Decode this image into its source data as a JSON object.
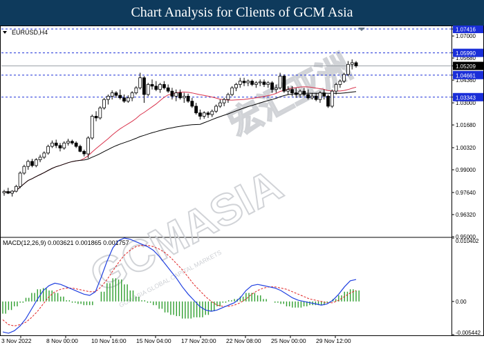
{
  "header": {
    "title": "Chart Analysis for Clients of GCM Asia"
  },
  "watermark": {
    "text": "GCMASIA",
    "chinese": "宏汇亚洲",
    "small": "GCM ASIA GLOBAL CAPITAL MARKETS"
  },
  "chart_data": {
    "type": "candlestick",
    "symbol_label": "EURUSD,H4",
    "price_axis": {
      "ticks": [
        "1.07416",
        "1.07000",
        "1.05990",
        "1.05680",
        "1.05209",
        "1.04661",
        "1.04360",
        "1.03343",
        "1.03000",
        "1.01680",
        "1.00320",
        "0.99000",
        "0.97640",
        "0.96320",
        "0.95000"
      ],
      "ylim": [
        0.95,
        1.075
      ]
    },
    "levels": [
      {
        "value": 1.07416,
        "label": "1.07416",
        "style": "dashed"
      },
      {
        "value": 1.0599,
        "label": "1.05990",
        "style": "dashed"
      },
      {
        "value": 1.05209,
        "label": "1.05209",
        "style": "solid-current"
      },
      {
        "value": 1.04661,
        "label": "1.04661",
        "style": "dashed"
      },
      {
        "value": 1.03343,
        "label": "1.03343",
        "style": "dashed"
      }
    ],
    "time_axis": {
      "labels": [
        "3 Nov 2022",
        "8 Nov 00:00",
        "10 Nov 16:00",
        "15 Nov 04:00",
        "17 Nov 20:00",
        "22 Nov 08:00",
        "25 Nov 00:00",
        "29 Nov 12:00"
      ]
    },
    "ohlc": [
      [
        0.9762,
        0.978,
        0.9745,
        0.977
      ],
      [
        0.977,
        0.9792,
        0.9755,
        0.976
      ],
      [
        0.976,
        0.9778,
        0.974,
        0.9772
      ],
      [
        0.9772,
        0.981,
        0.9765,
        0.98
      ],
      [
        0.98,
        0.989,
        0.979,
        0.988
      ],
      [
        0.988,
        0.993,
        0.987,
        0.992
      ],
      [
        0.992,
        0.996,
        0.99,
        0.995
      ],
      [
        0.995,
        0.9965,
        0.9915,
        0.9925
      ],
      [
        0.9925,
        0.997,
        0.9915,
        0.996
      ],
      [
        0.996,
        0.999,
        0.9945,
        0.9975
      ],
      [
        0.9975,
        1.001,
        0.9965,
        1.0
      ],
      [
        1.0,
        1.005,
        0.999,
        1.004
      ],
      [
        1.004,
        1.0075,
        1.003,
        1.006
      ],
      [
        1.006,
        1.008,
        1.003,
        1.0045
      ],
      [
        1.0045,
        1.006,
        1.001,
        1.003
      ],
      [
        1.003,
        1.007,
        1.002,
        1.006
      ],
      [
        1.006,
        1.0085,
        1.0045,
        1.007
      ],
      [
        1.007,
        1.008,
        1.005,
        1.006
      ],
      [
        1.006,
        1.007,
        1.003,
        1.004
      ],
      [
        1.004,
        1.005,
        1.0005,
        1.001
      ],
      [
        1.001,
        1.002,
        0.998,
        0.9995
      ],
      [
        0.9995,
        1.01,
        0.997,
        1.009
      ],
      [
        1.009,
        1.023,
        1.008,
        1.022
      ],
      [
        1.022,
        1.025,
        1.019,
        1.021
      ],
      [
        1.021,
        1.028,
        1.02,
        1.027
      ],
      [
        1.027,
        1.033,
        1.026,
        1.032
      ],
      [
        1.032,
        1.035,
        1.029,
        1.034
      ],
      [
        1.034,
        1.0375,
        1.032,
        1.036
      ],
      [
        1.036,
        1.037,
        1.033,
        1.0345
      ],
      [
        1.0345,
        1.038,
        1.032,
        1.033
      ],
      [
        1.033,
        1.035,
        1.03,
        1.031
      ],
      [
        1.031,
        1.0345,
        1.03,
        1.033
      ],
      [
        1.033,
        1.037,
        1.031,
        1.036
      ],
      [
        1.036,
        1.04,
        1.035,
        1.039
      ],
      [
        1.039,
        1.048,
        1.038,
        1.045
      ],
      [
        1.045,
        1.046,
        1.03,
        1.035
      ],
      [
        1.035,
        1.042,
        1.034,
        1.041
      ],
      [
        1.041,
        1.044,
        1.038,
        1.04
      ],
      [
        1.04,
        1.043,
        1.037,
        1.038
      ],
      [
        1.038,
        1.042,
        1.036,
        1.041
      ],
      [
        1.041,
        1.043,
        1.038,
        1.039
      ],
      [
        1.039,
        1.041,
        1.036,
        1.037
      ],
      [
        1.037,
        1.039,
        1.032,
        1.034
      ],
      [
        1.034,
        1.038,
        1.031,
        1.036
      ],
      [
        1.036,
        1.038,
        1.032,
        1.033
      ],
      [
        1.033,
        1.036,
        1.03,
        1.034
      ],
      [
        1.034,
        1.0355,
        1.03,
        1.031
      ],
      [
        1.031,
        1.033,
        1.027,
        1.028
      ],
      [
        1.028,
        1.03,
        1.023,
        1.024
      ],
      [
        1.024,
        1.026,
        1.02,
        1.022
      ],
      [
        1.022,
        1.025,
        1.0205,
        1.024
      ],
      [
        1.024,
        1.025,
        1.021,
        1.023
      ],
      [
        1.023,
        1.026,
        1.0215,
        1.025
      ],
      [
        1.025,
        1.029,
        1.024,
        1.028
      ],
      [
        1.028,
        1.032,
        1.027,
        1.03
      ],
      [
        1.03,
        1.033,
        1.028,
        1.032
      ],
      [
        1.032,
        1.036,
        1.03,
        1.035
      ],
      [
        1.035,
        1.04,
        1.034,
        1.039
      ],
      [
        1.039,
        1.042,
        1.037,
        1.041
      ],
      [
        1.041,
        1.045,
        1.039,
        1.043
      ],
      [
        1.043,
        1.045,
        1.04,
        1.042
      ],
      [
        1.042,
        1.044,
        1.04,
        1.043
      ],
      [
        1.043,
        1.044,
        1.04,
        1.041
      ],
      [
        1.041,
        1.043,
        1.039,
        1.042
      ],
      [
        1.042,
        1.044,
        1.04,
        1.0425
      ],
      [
        1.0425,
        1.044,
        1.0395,
        1.041
      ],
      [
        1.041,
        1.043,
        1.039,
        1.042
      ],
      [
        1.042,
        1.043,
        1.036,
        1.038
      ],
      [
        1.038,
        1.041,
        1.036,
        1.039
      ],
      [
        1.039,
        1.048,
        1.038,
        1.046
      ],
      [
        1.046,
        1.047,
        1.036,
        1.037
      ],
      [
        1.037,
        1.04,
        1.035,
        1.038
      ],
      [
        1.038,
        1.04,
        1.034,
        1.036
      ],
      [
        1.036,
        1.039,
        1.033,
        1.035
      ],
      [
        1.035,
        1.038,
        1.033,
        1.037
      ],
      [
        1.037,
        1.039,
        1.034,
        1.035
      ],
      [
        1.035,
        1.038,
        1.032,
        1.033
      ],
      [
        1.033,
        1.036,
        1.032,
        1.034
      ],
      [
        1.034,
        1.036,
        1.031,
        1.032
      ],
      [
        1.032,
        1.037,
        1.03,
        1.036
      ],
      [
        1.036,
        1.038,
        1.032,
        1.034
      ],
      [
        1.034,
        1.035,
        1.027,
        1.028
      ],
      [
        1.028,
        1.038,
        1.027,
        1.037
      ],
      [
        1.037,
        1.042,
        1.035,
        1.041
      ],
      [
        1.041,
        1.044,
        1.039,
        1.043
      ],
      [
        1.043,
        1.048,
        1.042,
        1.047
      ],
      [
        1.047,
        1.055,
        1.046,
        1.053
      ],
      [
        1.053,
        1.056,
        1.05,
        1.054
      ],
      [
        1.054,
        1.055,
        1.051,
        1.0521
      ]
    ],
    "moving_averages": [
      {
        "color": "#d9304a",
        "period": 20
      },
      {
        "color": "#000000",
        "period": 50
      }
    ],
    "macd": {
      "label": "MACD(12,26,9) 0.003621 0.001865 0.001757",
      "axis_ticks": [
        "0.010402",
        "0.00",
        "-0.005442"
      ],
      "ylim": [
        -0.005442,
        0.010402
      ],
      "main_line_color": "#1f3fe0",
      "signal_line_color": "#e02020",
      "histogram_color": "#2e9e2e",
      "main": [
        -0.005,
        -0.0052,
        -0.0048,
        -0.004,
        -0.0028,
        -0.0012,
        0.0004,
        0.0018,
        0.0026,
        0.003,
        0.0028,
        0.0024,
        0.002,
        0.0016,
        0.0012,
        0.001,
        0.0016,
        0.004,
        0.0066,
        0.0088,
        0.01,
        0.0104,
        0.0102,
        0.0098,
        0.0094,
        0.009,
        0.0084,
        0.0074,
        0.0062,
        0.005,
        0.0038,
        0.0024,
        0.0012,
        0.0002,
        -0.0008,
        -0.0014,
        -0.0016,
        -0.0014,
        -0.001,
        -0.0006,
        -0.0002,
        0.0006,
        0.0018,
        0.0026,
        0.0028,
        0.0026,
        0.0024,
        0.0022,
        0.0018,
        0.0012,
        0.0006,
        0.0002,
        0.0,
        -0.0002,
        -0.0004,
        -0.0006,
        -0.0004,
        0.0002,
        0.0012,
        0.0024,
        0.0034,
        0.0036
      ],
      "signal": [
        -0.003,
        -0.0038,
        -0.004,
        -0.0038,
        -0.0034,
        -0.0026,
        -0.0016,
        -0.0004,
        0.0008,
        0.0016,
        0.002,
        0.0022,
        0.0022,
        0.002,
        0.0018,
        0.0016,
        0.0016,
        0.0024,
        0.0036,
        0.005,
        0.0064,
        0.0076,
        0.0084,
        0.009,
        0.0092,
        0.0092,
        0.009,
        0.0086,
        0.008,
        0.0072,
        0.0062,
        0.0052,
        0.004,
        0.0028,
        0.0018,
        0.0008,
        0.0,
        -0.0006,
        -0.0008,
        -0.0008,
        -0.0006,
        -0.0002,
        0.0004,
        0.0012,
        0.0018,
        0.0022,
        0.0024,
        0.0024,
        0.0022,
        0.002,
        0.0016,
        0.0012,
        0.0008,
        0.0004,
        0.0002,
        0.0,
        -0.0002,
        -0.0002,
        0.0002,
        0.0008,
        0.0014,
        0.0018
      ]
    }
  }
}
